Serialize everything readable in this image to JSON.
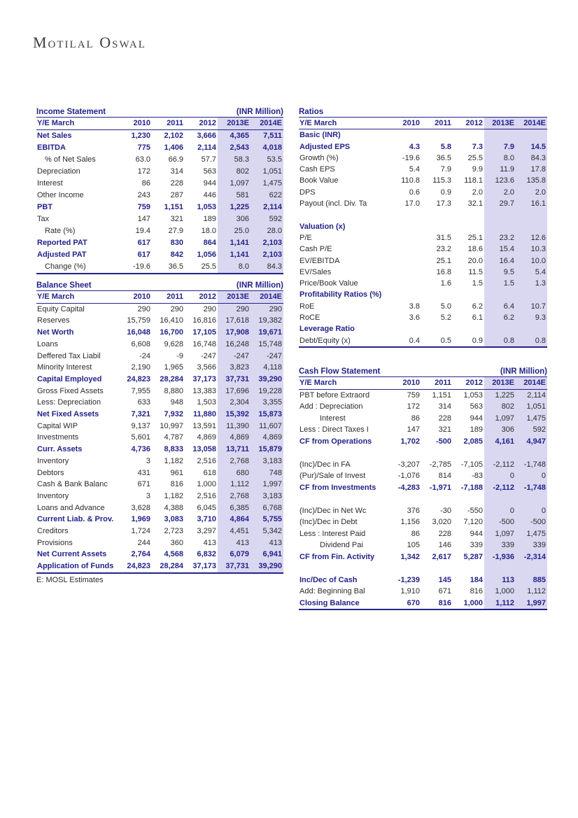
{
  "logo": {
    "text": "Motilal Oswal"
  },
  "footnote": "E: MOSL Estimates",
  "colors": {
    "navy": "#23238a",
    "highlight": "#dad7f1",
    "body_text": "#2b2b2b"
  },
  "income_statement": {
    "title": "Income Statement",
    "unit": "(INR Million)",
    "header": [
      "Y/E March",
      "2010",
      "2011",
      "2012",
      "2013E",
      "2014E"
    ],
    "rows": [
      {
        "label": "Net Sales",
        "style": "bold",
        "values": [
          "1,230",
          "2,102",
          "3,666",
          "4,365",
          "7,511"
        ]
      },
      {
        "label": "EBITDA",
        "style": "bold",
        "values": [
          "775",
          "1,406",
          "2,114",
          "2,543",
          "4,018"
        ]
      },
      {
        "label": "% of Net Sales",
        "style": "normal",
        "indent": 1,
        "values": [
          "63.0",
          "66.9",
          "57.7",
          "58.3",
          "53.5"
        ]
      },
      {
        "label": "Depreciation",
        "style": "normal",
        "values": [
          "172",
          "314",
          "563",
          "802",
          "1,051"
        ]
      },
      {
        "label": "Interest",
        "style": "normal",
        "values": [
          "86",
          "228",
          "944",
          "1,097",
          "1,475"
        ]
      },
      {
        "label": "Other Income",
        "style": "normal",
        "values": [
          "243",
          "287",
          "446",
          "581",
          "622"
        ]
      },
      {
        "label": "PBT",
        "style": "bold",
        "values": [
          "759",
          "1,151",
          "1,053",
          "1,225",
          "2,114"
        ]
      },
      {
        "label": "Tax",
        "style": "normal",
        "values": [
          "147",
          "321",
          "189",
          "306",
          "592"
        ]
      },
      {
        "label": "Rate (%)",
        "style": "normal",
        "indent": 1,
        "values": [
          "19.4",
          "27.9",
          "18.0",
          "25.0",
          "28.0"
        ]
      },
      {
        "label": "Reported PAT",
        "style": "bold",
        "values": [
          "617",
          "830",
          "864",
          "1,141",
          "2,103"
        ]
      },
      {
        "label": "Adjusted PAT",
        "style": "bold",
        "values": [
          "617",
          "842",
          "1,056",
          "1,141",
          "2,103"
        ]
      },
      {
        "label": "Change (%)",
        "style": "normal",
        "indent": 1,
        "values": [
          "-19.6",
          "36.5",
          "25.5",
          "8.0",
          "84.3"
        ]
      }
    ]
  },
  "balance_sheet": {
    "title": "Balance Sheet",
    "unit": "(INR Million)",
    "header": [
      "Y/E March",
      "2010",
      "2011",
      "2012",
      "2013E",
      "2014E"
    ],
    "rows": [
      {
        "label": "Equity Capital",
        "style": "normal",
        "values": [
          "290",
          "290",
          "290",
          "290",
          "290"
        ]
      },
      {
        "label": "Reserves",
        "style": "normal",
        "values": [
          "15,759",
          "16,410",
          "16,816",
          "17,618",
          "19,382"
        ]
      },
      {
        "label": "Net Worth",
        "style": "bold",
        "values": [
          "16,048",
          "16,700",
          "17,105",
          "17,908",
          "19,671"
        ]
      },
      {
        "label": "Loans",
        "style": "normal",
        "values": [
          "6,608",
          "9,628",
          "16,748",
          "16,248",
          "15,748"
        ]
      },
      {
        "label": "Deffered Tax Liabil",
        "style": "normal",
        "values": [
          "-24",
          "-9",
          "-247",
          "-247",
          "-247"
        ]
      },
      {
        "label": "Minority Interest",
        "style": "normal",
        "values": [
          "2,190",
          "1,965",
          "3,566",
          "3,823",
          "4,118"
        ]
      },
      {
        "label": "Capital Employed",
        "style": "bold",
        "values": [
          "24,823",
          "28,284",
          "37,173",
          "37,731",
          "39,290"
        ]
      },
      {
        "label": "Gross Fixed Assets",
        "style": "normal",
        "values": [
          "7,955",
          "8,880",
          "13,383",
          "17,696",
          "19,228"
        ]
      },
      {
        "label": "Less: Depreciation",
        "style": "normal",
        "values": [
          "633",
          "948",
          "1,503",
          "2,304",
          "3,355"
        ]
      },
      {
        "label": "Net Fixed Assets",
        "style": "bold",
        "values": [
          "7,321",
          "7,932",
          "11,880",
          "15,392",
          "15,873"
        ]
      },
      {
        "label": "Capital WIP",
        "style": "normal",
        "values": [
          "9,137",
          "10,997",
          "13,591",
          "11,390",
          "11,607"
        ]
      },
      {
        "label": "Investments",
        "style": "normal",
        "values": [
          "5,601",
          "4,787",
          "4,869",
          "4,869",
          "4,869"
        ]
      },
      {
        "label": "Curr. Assets",
        "style": "bold",
        "values": [
          "4,736",
          "8,833",
          "13,058",
          "13,711",
          "15,879"
        ]
      },
      {
        "label": "Inventory",
        "style": "normal",
        "values": [
          "3",
          "1,182",
          "2,516",
          "2,768",
          "3,183"
        ]
      },
      {
        "label": "Debtors",
        "style": "normal",
        "values": [
          "431",
          "961",
          "618",
          "680",
          "748"
        ]
      },
      {
        "label": "Cash & Bank Balanc",
        "style": "normal",
        "values": [
          "671",
          "816",
          "1,000",
          "1,112",
          "1,997"
        ]
      },
      {
        "label": "Inventory",
        "style": "normal",
        "values": [
          "3",
          "1,182",
          "2,516",
          "2,768",
          "3,183"
        ]
      },
      {
        "label": "Loans and Advance",
        "style": "normal",
        "values": [
          "3,628",
          "4,388",
          "6,045",
          "6,385",
          "6,768"
        ]
      },
      {
        "label": "Current Liab. & Prov.",
        "style": "bold",
        "values": [
          "1,969",
          "3,083",
          "3,710",
          "4,864",
          "5,755"
        ]
      },
      {
        "label": "Creditors",
        "style": "normal",
        "values": [
          "1,724",
          "2,723",
          "3,297",
          "4,451",
          "5,342"
        ]
      },
      {
        "label": "Provisions",
        "style": "normal",
        "values": [
          "244",
          "360",
          "413",
          "413",
          "413"
        ]
      },
      {
        "label": "Net Current  Assets",
        "style": "bold",
        "values": [
          "2,764",
          "4,568",
          "6,832",
          "6,079",
          "6,941"
        ]
      },
      {
        "label": "Application of Funds",
        "style": "bold",
        "values": [
          "24,823",
          "28,284",
          "37,173",
          "37,731",
          "39,290"
        ]
      }
    ]
  },
  "ratios": {
    "title": "Ratios",
    "unit": "",
    "header": [
      "Y/E March",
      "2010",
      "2011",
      "2012",
      "2013E",
      "2014E"
    ],
    "rows": [
      {
        "label": "Basic (INR)",
        "style": "section",
        "values": [
          "",
          "",
          "",
          "",
          ""
        ]
      },
      {
        "label": "Adjusted EPS",
        "style": "bold",
        "values": [
          "4.3",
          "5.8",
          "7.3",
          "7.9",
          "14.5"
        ]
      },
      {
        "label": "Growth (%)",
        "style": "normal",
        "values": [
          "-19.6",
          "36.5",
          "25.5",
          "8.0",
          "84.3"
        ]
      },
      {
        "label": "Cash EPS",
        "style": "normal",
        "values": [
          "5.4",
          "7.9",
          "9.9",
          "11.9",
          "17.8"
        ]
      },
      {
        "label": "Book Value",
        "style": "normal",
        "values": [
          "110.8",
          "115.3",
          "118.1",
          "123.6",
          "135.8"
        ]
      },
      {
        "label": "DPS",
        "style": "normal",
        "values": [
          "0.6",
          "0.9",
          "2.0",
          "2.0",
          "2.0"
        ]
      },
      {
        "label": "Payout (incl. Div. Ta",
        "style": "normal",
        "values": [
          "17.0",
          "17.3",
          "32.1",
          "29.7",
          "16.1"
        ]
      },
      {
        "label": "",
        "style": "blank",
        "values": [
          "",
          "",
          "",
          "",
          ""
        ]
      },
      {
        "label": "Valuation (x)",
        "style": "section",
        "values": [
          "",
          "",
          "",
          "",
          ""
        ]
      },
      {
        "label": "P/E",
        "style": "normal",
        "values": [
          "",
          "31.5",
          "25.1",
          "23.2",
          "12.6"
        ]
      },
      {
        "label": "Cash P/E",
        "style": "normal",
        "values": [
          "",
          "23.2",
          "18.6",
          "15.4",
          "10.3"
        ]
      },
      {
        "label": "EV/EBITDA",
        "style": "normal",
        "values": [
          "",
          "25.1",
          "20.0",
          "16.4",
          "10.0"
        ]
      },
      {
        "label": "EV/Sales",
        "style": "normal",
        "values": [
          "",
          "16.8",
          "11.5",
          "9.5",
          "5.4"
        ]
      },
      {
        "label": "Price/Book Value",
        "style": "normal",
        "values": [
          "",
          "1.6",
          "1.5",
          "1.5",
          "1.3"
        ]
      },
      {
        "label": "Profitability Ratios (%)",
        "style": "section",
        "values": [
          "",
          "",
          "",
          "",
          ""
        ]
      },
      {
        "label": "RoE",
        "style": "normal",
        "values": [
          "3.8",
          "5.0",
          "6.2",
          "6.4",
          "10.7"
        ]
      },
      {
        "label": "RoCE",
        "style": "normal",
        "values": [
          "3.6",
          "5.2",
          "6.1",
          "6.2",
          "9.3"
        ]
      },
      {
        "label": "Leverage Ratio",
        "style": "section",
        "values": [
          "",
          "",
          "",
          "",
          ""
        ]
      },
      {
        "label": "Debt/Equity (x)",
        "style": "normal",
        "values": [
          "0.4",
          "0.5",
          "0.9",
          "0.8",
          "0.8"
        ]
      }
    ]
  },
  "cash_flow": {
    "title": "Cash Flow Statement",
    "unit": "(INR Million)",
    "header": [
      "Y/E March",
      "2010",
      "2011",
      "2012",
      "2013E",
      "2014E"
    ],
    "rows": [
      {
        "label": "PBT before Extraord",
        "style": "normal",
        "values": [
          "759",
          "1,151",
          "1,053",
          "1,225",
          "2,114"
        ]
      },
      {
        "label": "Add : Depreciation",
        "style": "normal",
        "values": [
          "172",
          "314",
          "563",
          "802",
          "1,051"
        ]
      },
      {
        "label": "Interest",
        "style": "normal",
        "indent": 2,
        "values": [
          "86",
          "228",
          "944",
          "1,097",
          "1,475"
        ]
      },
      {
        "label": "Less : Direct Taxes I",
        "style": "normal",
        "values": [
          "147",
          "321",
          "189",
          "306",
          "592"
        ]
      },
      {
        "label": "CF from Operations",
        "style": "bold",
        "values": [
          "1,702",
          "-500",
          "2,085",
          "4,161",
          "4,947"
        ]
      },
      {
        "label": "",
        "style": "blank",
        "values": [
          "",
          "",
          "",
          "",
          ""
        ]
      },
      {
        "label": "(Inc)/Dec in FA",
        "style": "normal",
        "values": [
          "-3,207",
          "-2,785",
          "-7,105",
          "-2,112",
          "-1,748"
        ]
      },
      {
        "label": "(Pur)/Sale of Invest",
        "style": "normal",
        "values": [
          "-1,076",
          "814",
          "-83",
          "0",
          "0"
        ]
      },
      {
        "label": "CF from Investments",
        "style": "bold",
        "values": [
          "-4,283",
          "-1,971",
          "-7,188",
          "-2,112",
          "-1,748"
        ]
      },
      {
        "label": "",
        "style": "blank",
        "values": [
          "",
          "",
          "",
          "",
          ""
        ]
      },
      {
        "label": "(Inc)/Dec in Net Wc",
        "style": "normal",
        "values": [
          "376",
          "-30",
          "-550",
          "0",
          "0"
        ]
      },
      {
        "label": "(Inc)/Dec in Debt",
        "style": "normal",
        "values": [
          "1,156",
          "3,020",
          "7,120",
          "-500",
          "-500"
        ]
      },
      {
        "label": "Less : Interest Paid",
        "style": "normal",
        "values": [
          "86",
          "228",
          "944",
          "1,097",
          "1,475"
        ]
      },
      {
        "label": "Dividend Pai",
        "style": "normal",
        "indent": 2,
        "values": [
          "105",
          "146",
          "339",
          "339",
          "339"
        ]
      },
      {
        "label": "CF from Fin. Activity",
        "style": "bold",
        "values": [
          "1,342",
          "2,617",
          "5,287",
          "-1,936",
          "-2,314"
        ]
      },
      {
        "label": "",
        "style": "blank",
        "values": [
          "",
          "",
          "",
          "",
          ""
        ]
      },
      {
        "label": "Inc/Dec of Cash",
        "style": "bold",
        "values": [
          "-1,239",
          "145",
          "184",
          "113",
          "885"
        ]
      },
      {
        "label": "Add: Beginning Bal",
        "style": "normal",
        "values": [
          "1,910",
          "671",
          "816",
          "1,000",
          "1,112"
        ]
      },
      {
        "label": "Closing Balance",
        "style": "bold",
        "values": [
          "670",
          "816",
          "1,000",
          "1,112",
          "1,997"
        ]
      }
    ]
  }
}
